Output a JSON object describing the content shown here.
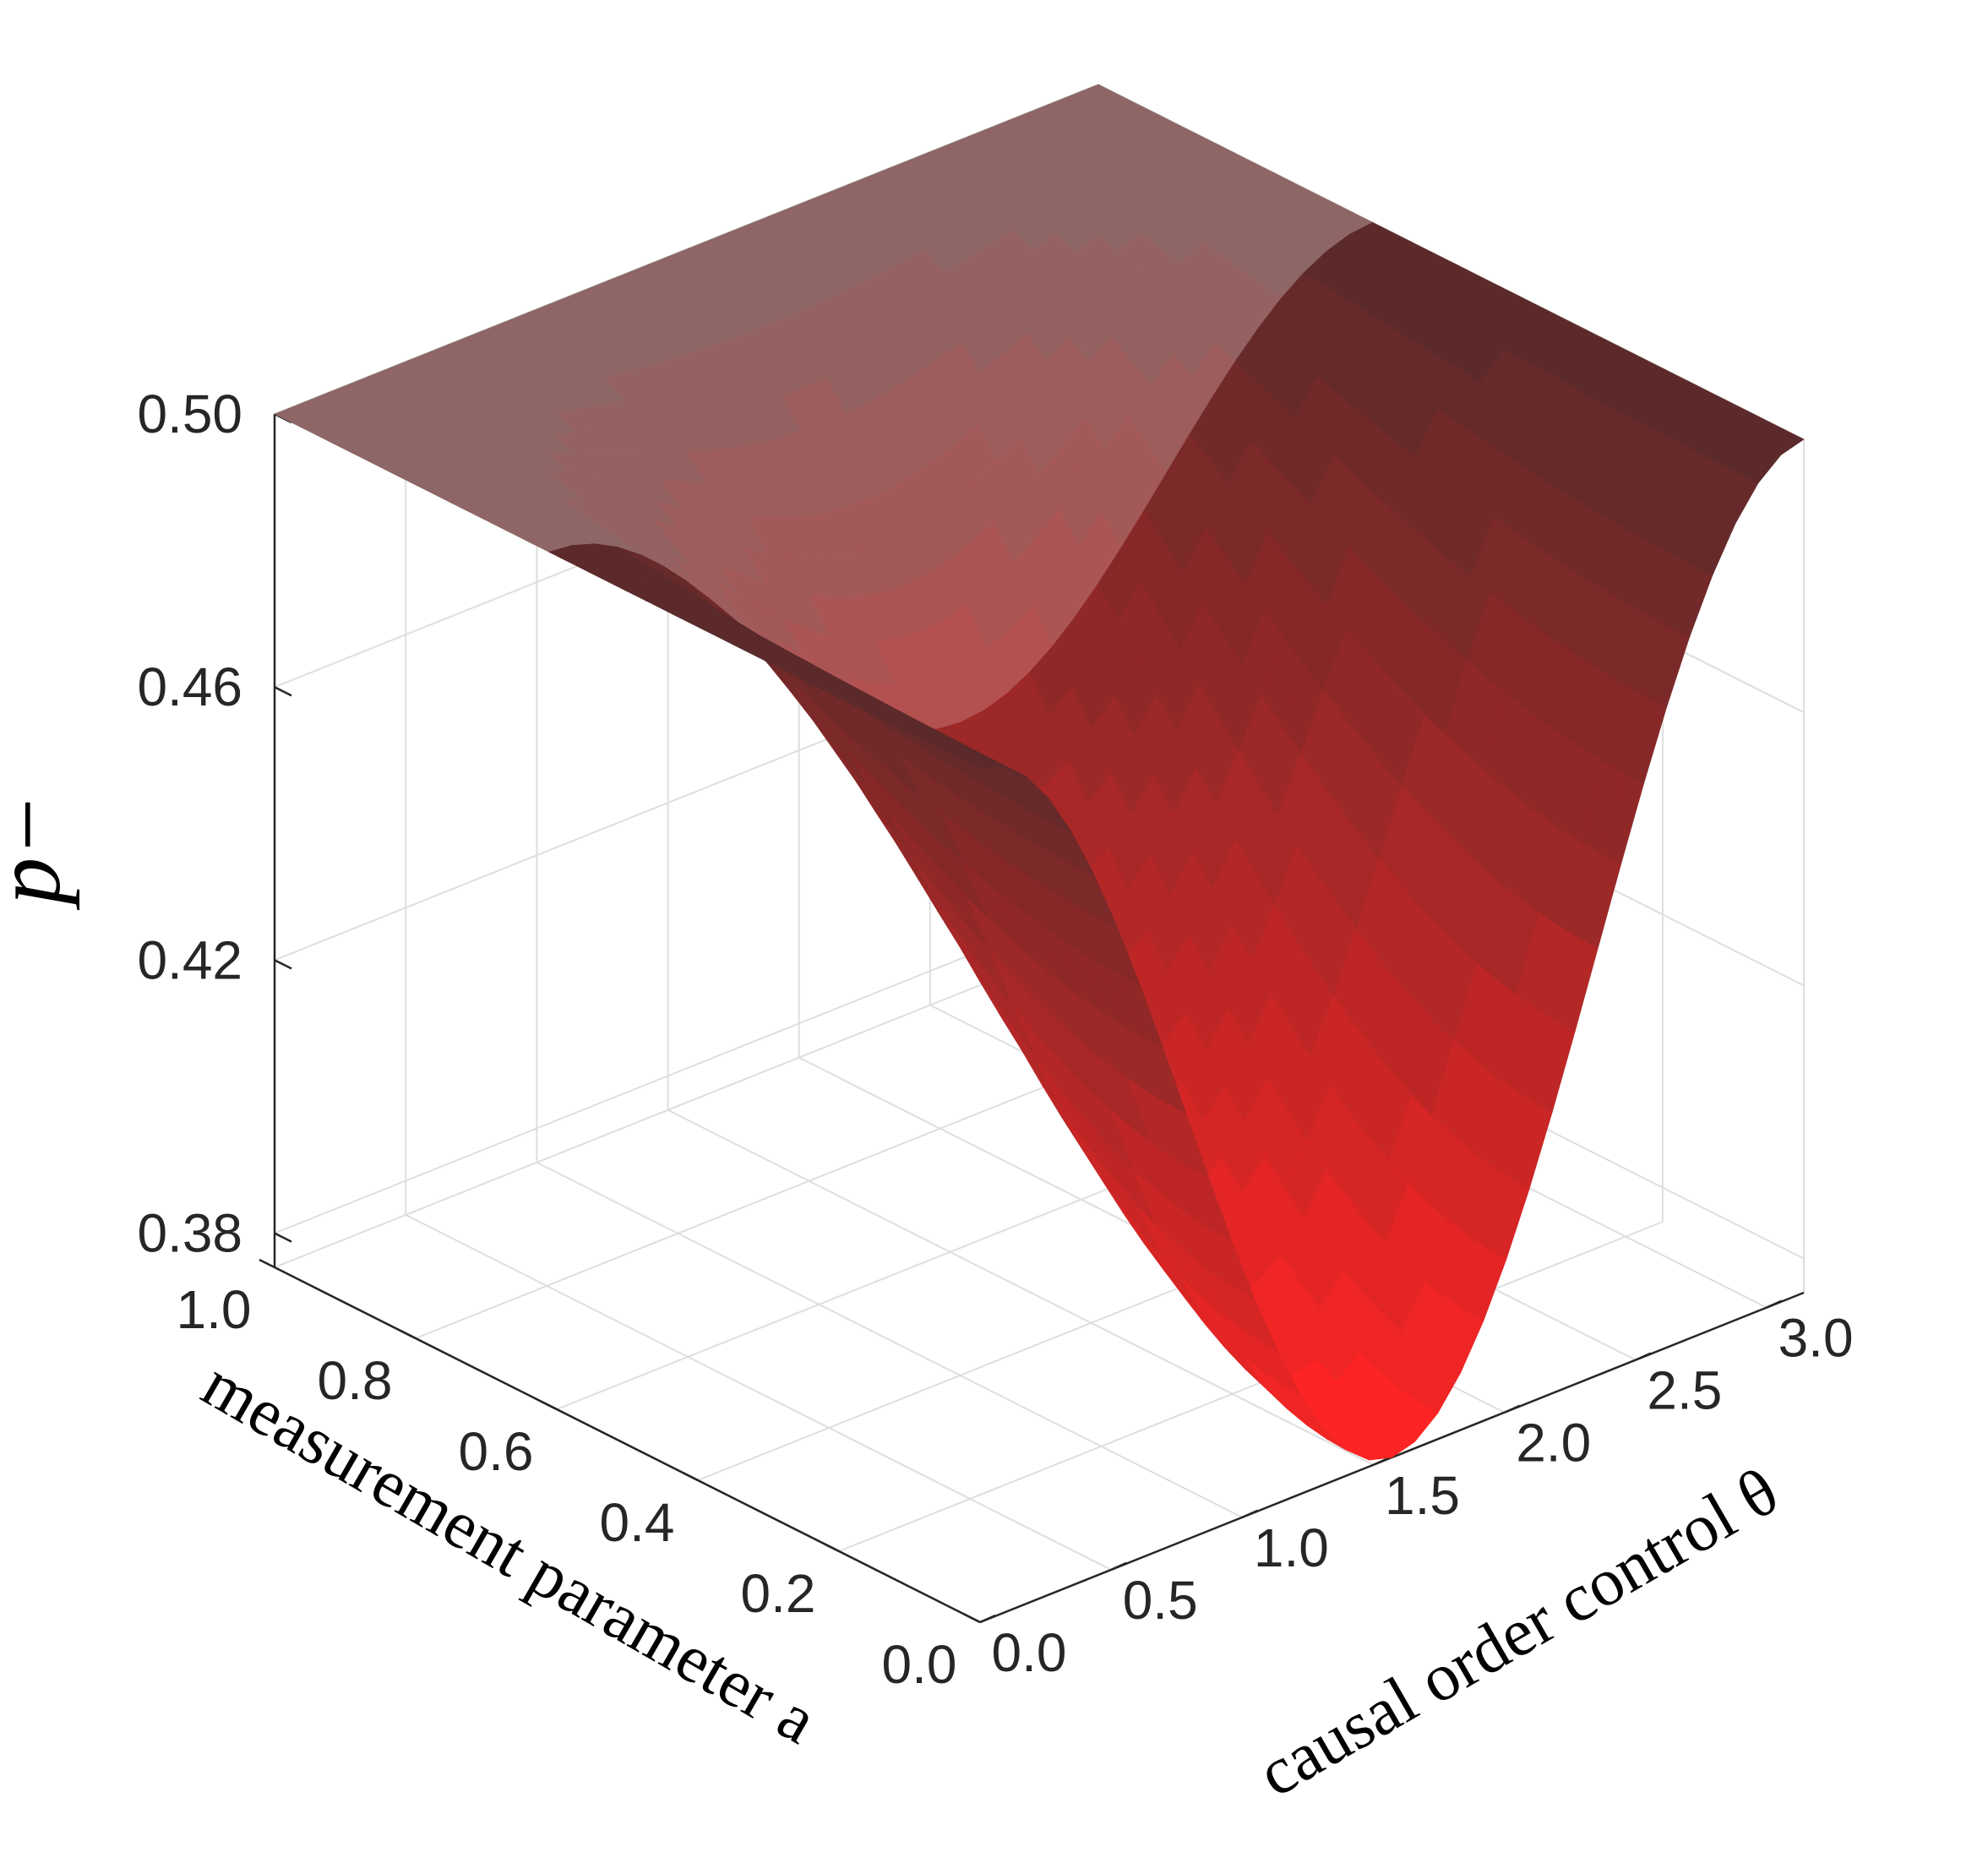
{
  "chart_data": {
    "type": "surface",
    "title": "",
    "function": "p_minus = 0.5 - 0.125 * sin(theta)^2 * (1 - a^2)^2",
    "x": {
      "label": "causal order control θ",
      "range": [
        0,
        3.1416
      ],
      "ticks": [
        0.0,
        0.5,
        1.0,
        1.5,
        2.0,
        2.5,
        3.0
      ],
      "tick_labels": [
        "0.0",
        "0.5",
        "1.0",
        "1.5",
        "2.0",
        "2.5",
        "3.0"
      ]
    },
    "y": {
      "label": "measurement parameter  a",
      "range": [
        0,
        1
      ],
      "ticks": [
        0.0,
        0.2,
        0.4,
        0.6,
        0.8,
        1.0
      ],
      "tick_labels": [
        "0.0",
        "0.2",
        "0.4",
        "0.6",
        "0.8",
        "1.0"
      ]
    },
    "z": {
      "label": "p−",
      "range": [
        0.375,
        0.5
      ],
      "ticks": [
        0.38,
        0.42,
        0.46,
        0.5
      ],
      "tick_labels": [
        "0.38",
        "0.42",
        "0.46",
        "0.50"
      ]
    },
    "minimum": {
      "theta": 1.5708,
      "a": 0.0,
      "p_minus": 0.375
    },
    "maximum": {
      "p_minus": 0.5
    },
    "colormap": [
      "#ff2424",
      "#5c2a2a",
      "#8e6666"
    ],
    "grid": true
  }
}
